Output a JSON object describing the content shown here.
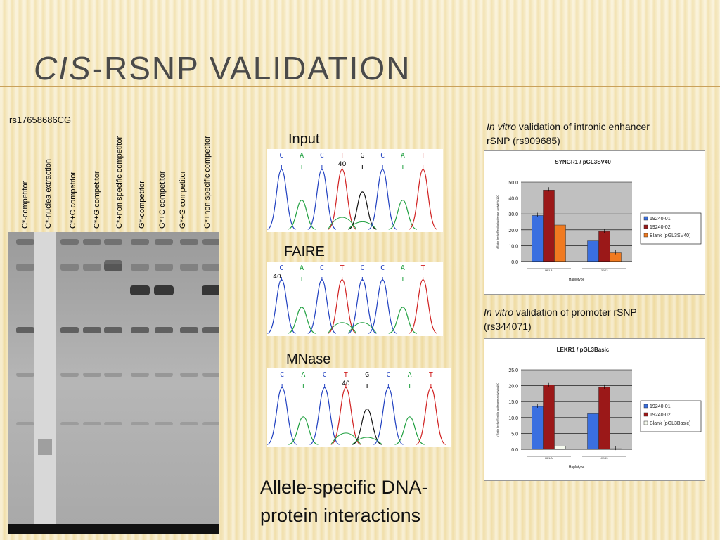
{
  "slide": {
    "title_italic": "cis",
    "title_rest": "-rSNP Validation"
  },
  "gel": {
    "snp_id": "rs17658686CG",
    "lanes": [
      "C*-competitor",
      "C*-nuclea extraction",
      "C*+C competitor",
      "C*+G competitor",
      "C*+non specific competitor",
      "G*-competitor",
      "G*+C competitor",
      "G*+G competitor",
      "G*+non specific competitor"
    ]
  },
  "chromatograms": [
    {
      "label": "Input",
      "bases": [
        "C",
        "A",
        "C",
        "T",
        "G",
        "C",
        "A",
        "T"
      ],
      "position": "40"
    },
    {
      "label": "FAIRE",
      "bases": [
        "C",
        "A",
        "C",
        "T",
        "C",
        "C",
        "A",
        "T"
      ],
      "position": "40"
    },
    {
      "label": "MNase",
      "bases": [
        "C",
        "A",
        "C",
        "T",
        "G",
        "C",
        "A",
        "T"
      ],
      "position": "40"
    }
  ],
  "caption": {
    "line1": "Allele-specific DNA-",
    "line2": "protein interactions"
  },
  "validations": [
    {
      "caption_italic": "In vitro",
      "caption_rest": " validation of intronic enhancer",
      "caption_line2": "rSNP (rs909685)"
    },
    {
      "caption_italic": "In vitro",
      "caption_rest": " validation of promoter rSNP",
      "caption_line2": "(rs344071)"
    }
  ],
  "chart_data": [
    {
      "type": "bar",
      "title": "SYNGR1 / pGL3SV40",
      "ylabel": "(Ratio firefly/Renilla luciferase activity)x100",
      "xlabel": "Haplotype",
      "categories": [
        "HELA",
        "JEG3"
      ],
      "series": [
        {
          "name": "19240-01",
          "values": [
            29,
            13
          ],
          "color": "#3a6fe0"
        },
        {
          "name": "19240-02",
          "values": [
            45,
            19
          ],
          "color": "#9b1818"
        },
        {
          "name": "Blank (pGL3SV40)",
          "values": [
            23,
            5.5
          ],
          "color": "#f07a20"
        }
      ],
      "ylim": [
        0,
        50
      ],
      "yticks": [
        "0.0",
        "10.0",
        "20.0",
        "30.0",
        "40.0",
        "50.0"
      ],
      "grid": true,
      "legend": "right"
    },
    {
      "type": "bar",
      "title": "LEKR1 / pGL3Basic",
      "ylabel": "(Ratio firefly/Renilla luciferase activity)x100",
      "xlabel": "Haplotype",
      "categories": [
        "HELA",
        "JEG3"
      ],
      "series": [
        {
          "name": "19240-01",
          "values": [
            13.5,
            11.2
          ],
          "color": "#3a6fe0"
        },
        {
          "name": "19240-02",
          "values": [
            20.2,
            19.5
          ],
          "color": "#9b1818"
        },
        {
          "name": "Blank (pGL3Basic)",
          "values": [
            1.0,
            0.2
          ],
          "color": "#f6fbef"
        }
      ],
      "ylim": [
        0,
        25
      ],
      "yticks": [
        "0.0",
        "5.0",
        "10.0",
        "15.0",
        "20.0",
        "25.0"
      ],
      "grid": true,
      "legend": "right"
    }
  ]
}
